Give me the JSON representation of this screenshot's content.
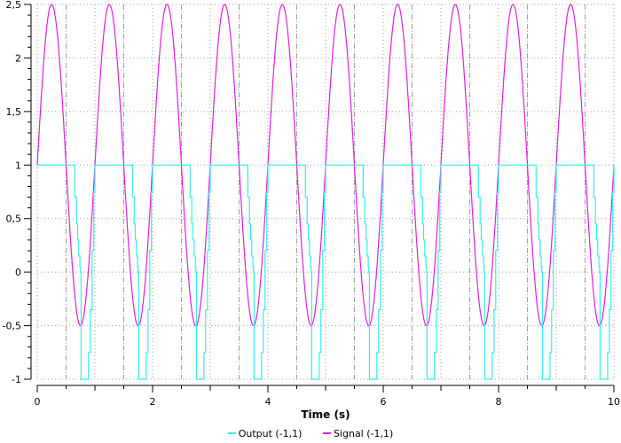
{
  "chart_data": {
    "type": "line",
    "title": "",
    "xlabel": "Time (s)",
    "ylabel": "",
    "xlim": [
      0,
      10
    ],
    "ylim": [
      -1,
      2.5
    ],
    "x_ticks": [
      0,
      2,
      4,
      6,
      8,
      10
    ],
    "x_tick_labels": [
      "0",
      "2",
      "4",
      "6",
      "8",
      "10"
    ],
    "x_major_step": 1,
    "y_ticks": [
      -1,
      -0.5,
      0,
      0.5,
      1,
      1.5,
      2,
      2.5
    ],
    "y_tick_labels": [
      "-1",
      "-0,5",
      "0",
      "0,5",
      "1",
      "1,5",
      "2",
      "2,5"
    ],
    "y_minor_step": 0.1,
    "grid": true,
    "legend_position": "bottom",
    "series": [
      {
        "name": "Output (-1,1)",
        "color": "#33eeee",
        "description": "Clipped/lagged response: holds 1, follows signal down with ~0.12s lag, drops to -1 near t=0.75+k, returns to 1 near t=1.0+k",
        "period": 1,
        "pattern_t": [
          0,
          0.62,
          0.65,
          0.68,
          0.7,
          0.72,
          0.74,
          0.75,
          0.76,
          0.88,
          0.89,
          0.92,
          0.95,
          0.98,
          1.0
        ],
        "pattern_y": [
          1,
          1,
          0.7,
          0.45,
          0.3,
          0.15,
          0.05,
          0.0,
          -1,
          -1,
          -0.75,
          -0.35,
          0.2,
          0.75,
          1
        ]
      },
      {
        "name": "Signal (-1,1)",
        "color": "#e020e0",
        "description": "y = 1 + 1.5*sin(2*pi*t), period 1 s, min -0.5, max 2.5",
        "offset": 1,
        "amplitude": 1.5,
        "frequency": 1,
        "samples_t": [
          0,
          0.25,
          0.5,
          0.75,
          1.0
        ],
        "samples_y": [
          1,
          2.5,
          1,
          -0.5,
          1
        ]
      }
    ]
  },
  "legend": {
    "items": [
      {
        "label": "Output (-1,1)",
        "color": "#33eeee"
      },
      {
        "label": "Signal (-1,1)",
        "color": "#e020e0"
      }
    ]
  },
  "axes": {
    "xlabel": "Time (s)"
  }
}
